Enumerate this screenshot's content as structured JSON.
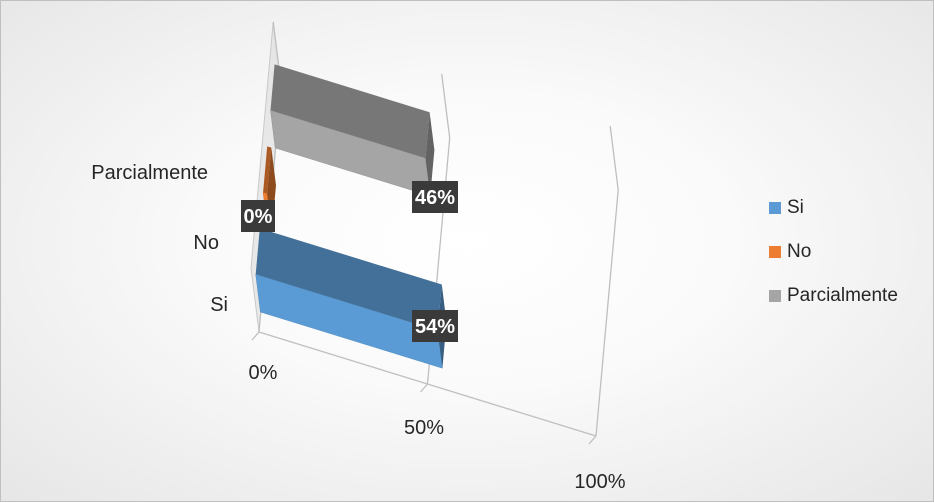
{
  "chart_data": {
    "type": "bar",
    "orientation": "horizontal",
    "style": "3d",
    "categories": [
      "Si",
      "No",
      "Parcialmente"
    ],
    "values": [
      54,
      0,
      46
    ],
    "value_unit": "%",
    "data_labels": [
      "54%",
      "0%",
      "46%"
    ],
    "xlim": [
      0,
      100
    ],
    "x_ticks": [
      "0%",
      "50%",
      "100%"
    ],
    "series": [
      {
        "name": "Si",
        "color": "#5b9bd5"
      },
      {
        "name": "No",
        "color": "#ed7d31"
      },
      {
        "name": "Parcialmente",
        "color": "#a5a5a5"
      }
    ],
    "legend": {
      "position": "right",
      "items": [
        "Si",
        "No",
        "Parcialmente"
      ]
    },
    "grid": true
  }
}
